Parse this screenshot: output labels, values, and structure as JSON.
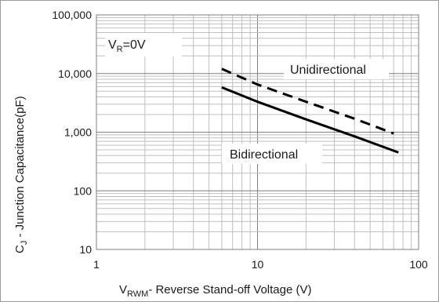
{
  "chart_data": {
    "type": "line",
    "title": "",
    "x_axis": {
      "scale": "log",
      "range": [
        1,
        100
      ],
      "tick_labels": [
        "1",
        "10",
        "100"
      ],
      "label_main": "V",
      "label_sub": "RWM",
      "label_rest": "- Reverse  Stand-off Voltage (V)"
    },
    "y_axis": {
      "scale": "log",
      "range": [
        10,
        100000
      ],
      "tick_labels": [
        "10",
        "100",
        "1,000",
        "10,000",
        "100,000"
      ],
      "label_main": "C",
      "label_sub": "J",
      "label_rest": " - Junction Capacitance(pF)"
    },
    "grid": true,
    "condition": {
      "main": "V",
      "sub": "R",
      "rest": "=0V"
    },
    "series": [
      {
        "name": "Unidirectional",
        "style": "dashed",
        "x": [
          6,
          10,
          20,
          40,
          70
        ],
        "y": [
          12000,
          6500,
          3300,
          1700,
          950
        ]
      },
      {
        "name": "Bidirectional",
        "style": "solid",
        "x": [
          6,
          10,
          20,
          40,
          75
        ],
        "y": [
          5800,
          3300,
          1650,
          850,
          450
        ]
      }
    ],
    "colors": {
      "line": "#000000",
      "grid": "#bfbfbf",
      "axis": "#7f7f7f"
    }
  }
}
